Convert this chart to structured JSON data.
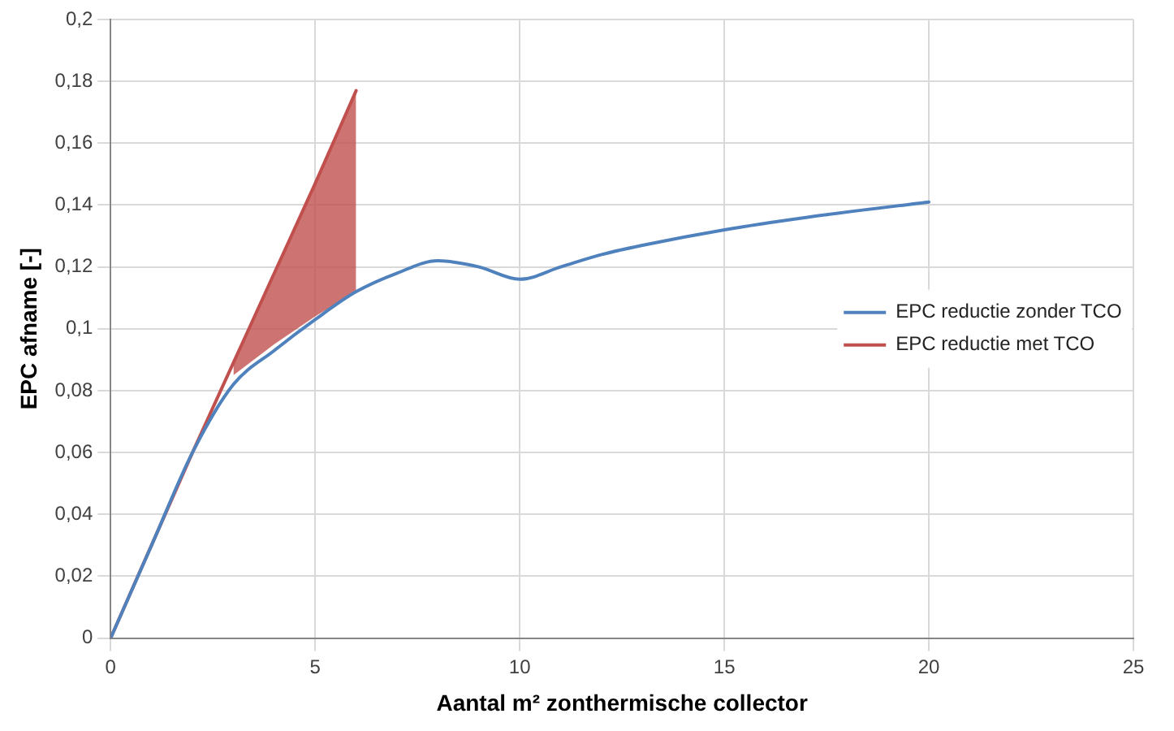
{
  "chart_data": {
    "type": "line",
    "xlabel": "Aantal m² zonthermische collector",
    "ylabel": "EPC afname [-]",
    "xlim": [
      0,
      25
    ],
    "xticks": [
      0,
      5,
      10,
      15,
      20,
      25
    ],
    "ylim": [
      0,
      0.2
    ],
    "yticks": [
      0,
      {
        "value": 0.02,
        "label": "0,02"
      },
      {
        "value": 0.04,
        "label": "0,04"
      },
      {
        "value": 0.06,
        "label": "0,06"
      },
      {
        "value": 0.08,
        "label": "0,08"
      },
      {
        "value": 0.1,
        "label": "0,1"
      },
      {
        "value": 0.12,
        "label": "0,12"
      },
      {
        "value": 0.14,
        "label": "0,14"
      },
      {
        "value": 0.16,
        "label": "0,16"
      },
      {
        "value": 0.18,
        "label": "0,18"
      },
      {
        "value": 0.2,
        "label": "0,2"
      }
    ],
    "grid": true,
    "legend": "right",
    "marker": "none",
    "line_style": "solid",
    "series": [
      {
        "name": "EPC reductie zonder TCO",
        "color": "#4f81bd",
        "x": [
          0,
          1,
          2,
          3,
          4,
          5,
          6,
          7,
          8,
          9,
          10,
          11,
          12,
          13,
          15,
          17,
          20
        ],
        "values": [
          0,
          0.03,
          0.06,
          0.082,
          0.093,
          0.103,
          0.112,
          0.118,
          0.122,
          0.12,
          0.116,
          0.12,
          0.124,
          0.127,
          0.132,
          0.136,
          0.141
        ]
      },
      {
        "name": "EPC reductie met TCO",
        "color": "#c0504d",
        "x": [
          0,
          2,
          3,
          4,
          5,
          6
        ],
        "values": [
          0,
          0.06,
          0.089,
          0.118,
          0.147,
          0.177
        ],
        "lower": [
          null,
          null,
          0.085,
          0.095,
          0.104,
          0.112
        ],
        "upper": [
          null,
          null,
          0.089,
          0.118,
          0.147,
          0.177
        ]
      }
    ]
  }
}
